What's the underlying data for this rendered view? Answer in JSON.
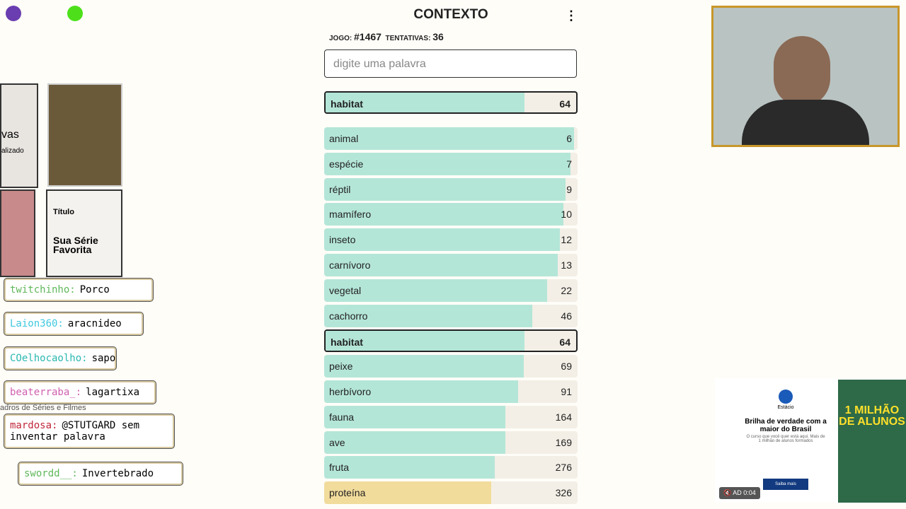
{
  "header": {
    "title": "CONTEXTO",
    "game_label": "JOGO:",
    "game_number": "#1467",
    "attempts_label": "TENTATIVAS:",
    "attempts": "36"
  },
  "input": {
    "placeholder": "digite uma palavra"
  },
  "last_guess": {
    "word": "habitat",
    "rank": 64,
    "color": "#b4e6d8"
  },
  "guesses": [
    {
      "word": "animal",
      "rank": 6,
      "color": "#b4e6d8"
    },
    {
      "word": "espécie",
      "rank": 7,
      "color": "#b4e6d8"
    },
    {
      "word": "réptil",
      "rank": 9,
      "color": "#b4e6d8"
    },
    {
      "word": "mamífero",
      "rank": 10,
      "color": "#b4e6d8"
    },
    {
      "word": "inseto",
      "rank": 12,
      "color": "#b4e6d8"
    },
    {
      "word": "carnívoro",
      "rank": 13,
      "color": "#b4e6d8"
    },
    {
      "word": "vegetal",
      "rank": 22,
      "color": "#b4e6d8"
    },
    {
      "word": "cachorro",
      "rank": 46,
      "color": "#b4e6d8"
    },
    {
      "word": "habitat",
      "rank": 64,
      "color": "#b4e6d8",
      "highlight": true
    },
    {
      "word": "peixe",
      "rank": 69,
      "color": "#b4e6d8"
    },
    {
      "word": "herbívoro",
      "rank": 91,
      "color": "#b4e6d8"
    },
    {
      "word": "fauna",
      "rank": 164,
      "color": "#b4e6d8"
    },
    {
      "word": "ave",
      "rank": 169,
      "color": "#b4e6d8"
    },
    {
      "word": "fruta",
      "rank": 276,
      "color": "#b4e6d8"
    },
    {
      "word": "proteína",
      "rank": 326,
      "color": "#f2dc9c"
    }
  ],
  "chat": [
    {
      "user": "twitchinho:",
      "message": "Porco",
      "color": "#5fb85a"
    },
    {
      "user": "Laion360:",
      "message": "aracnideo",
      "color": "#3fc8e0"
    },
    {
      "user": "COelhocaolho:",
      "message": "sapo",
      "color": "#2ab8b0"
    },
    {
      "user": "beaterraba_:",
      "message": "lagartixa",
      "color": "#d060b0"
    },
    {
      "user": "mardosa:",
      "message": "@STUTGARD sem inventar palavra",
      "color": "#c0283a"
    },
    {
      "user": "swordd__:",
      "message": "Invertebrado",
      "color": "#5fb85a"
    }
  ],
  "left_ad": {
    "poster_a": "vas",
    "poster_a_sub": "alizado",
    "poster_b_title": "Título",
    "poster_b_text": "Sua Série Favorita",
    "caption": "adros de Séries e Filmes"
  },
  "right_ad": {
    "brand": "Estácio",
    "headline": "Brilha de verdade com a maior do Brasil",
    "body": "O curso que você quer está aqui. Mais de 1 milhão de alunos formados",
    "button": "Saiba mais",
    "banner": "1 MILHÃO DE ALUNOS",
    "ad_label": "AD",
    "time": "0:04"
  }
}
